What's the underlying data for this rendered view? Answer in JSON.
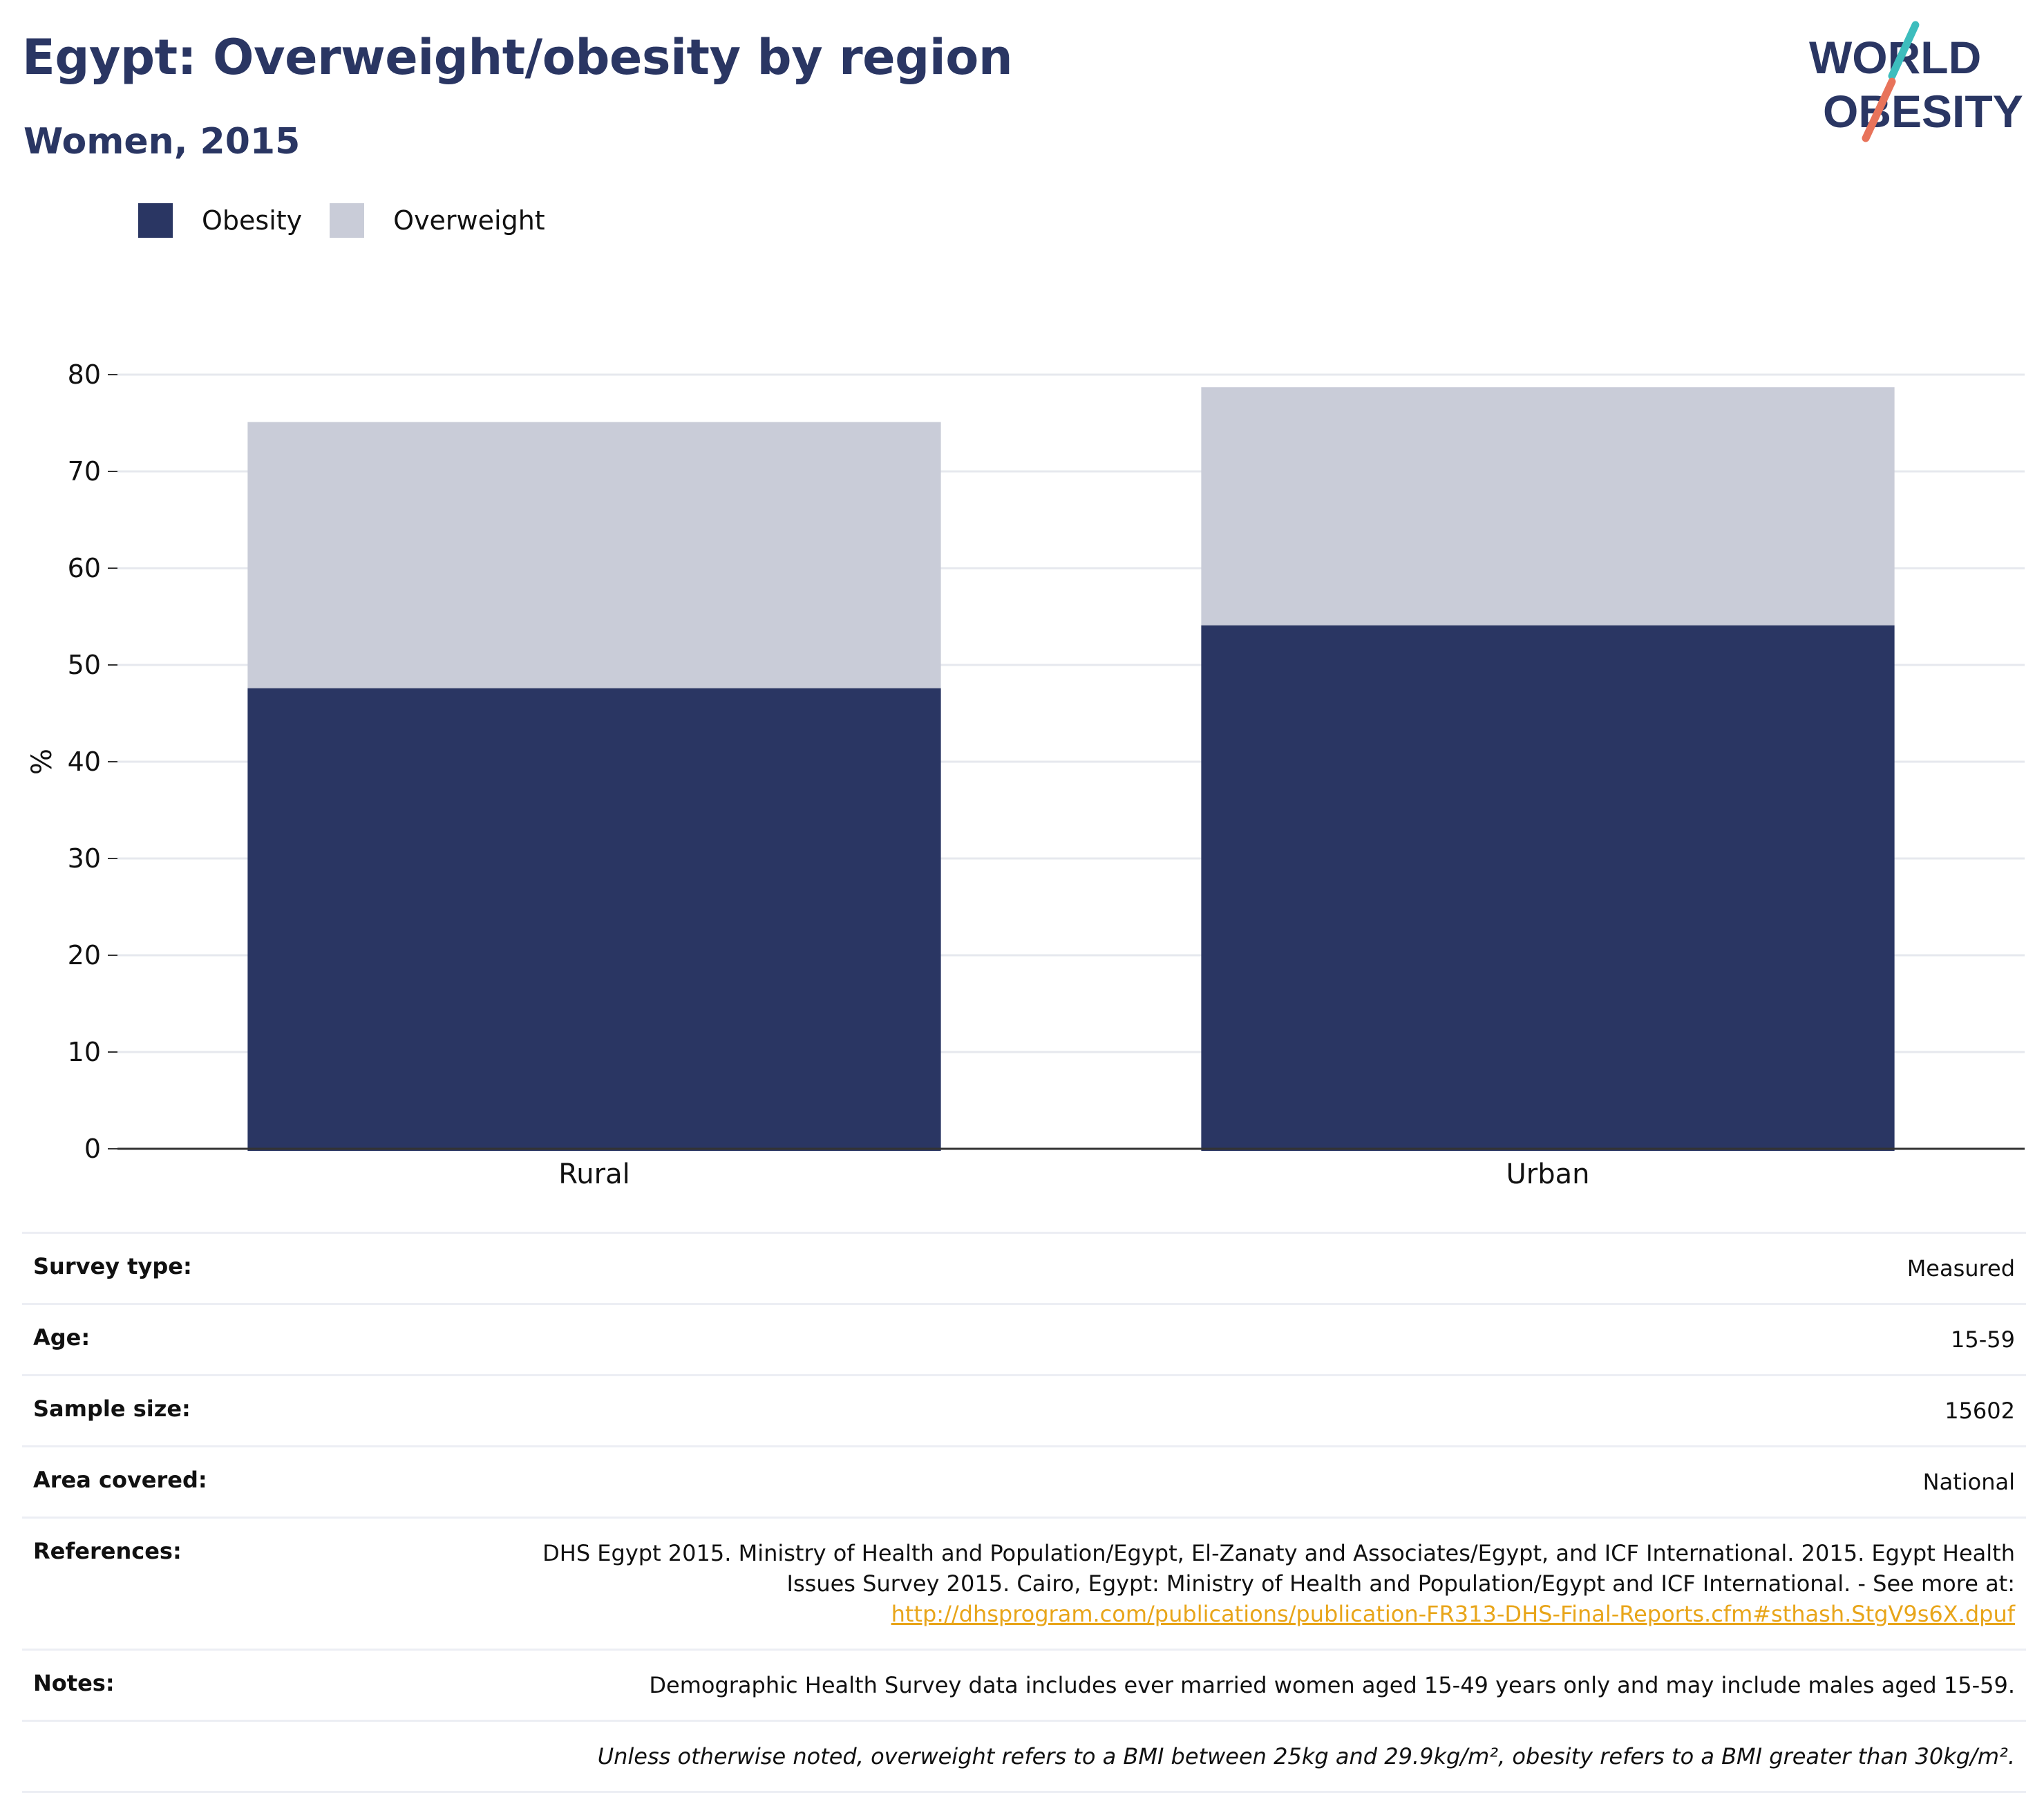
{
  "title": "Egypt: Overweight/obesity by region",
  "subtitle": "Women, 2015",
  "logo": {
    "line1": "WORLD",
    "line2": "OBESITY",
    "accent_teal": "#3dbdbd",
    "accent_coral": "#e8735a"
  },
  "colors": {
    "obesity": "#2a3663",
    "overweight": "#c9ccd8",
    "title": "#2a3663"
  },
  "chart_data": {
    "type": "bar",
    "stacked": true,
    "categories": [
      "Rural",
      "Urban"
    ],
    "series": [
      {
        "name": "Obesity",
        "values": [
          47.6,
          54.1
        ]
      },
      {
        "name": "Overweight",
        "values": [
          27.5,
          24.6
        ]
      }
    ],
    "ylabel": "%",
    "ylim": [
      0,
      80
    ],
    "yticks": [
      0,
      10,
      20,
      30,
      40,
      50,
      60,
      70,
      80
    ],
    "grid": true,
    "legend": "top-left"
  },
  "info": {
    "survey_type": {
      "label": "Survey type:",
      "value": "Measured"
    },
    "age": {
      "label": "Age:",
      "value": "15-59"
    },
    "sample_size": {
      "label": "Sample size:",
      "value": "15602"
    },
    "area": {
      "label": "Area covered:",
      "value": "National"
    },
    "references": {
      "label": "References:",
      "value": "DHS Egypt 2015. Ministry of Health and Population/Egypt, El-Zanaty and Associates/Egypt, and ICF International. 2015. Egypt Health Issues Survey 2015. Cairo, Egypt: Ministry of Health and Population/Egypt and ICF International. - See more at:",
      "link": "http://dhsprogram.com/publications/publication-FR313-DHS-Final-Reports.cfm#sthash.StgV9s6X.dpuf"
    },
    "notes": {
      "label": "Notes:",
      "value": "Demographic Health Survey data includes ever married women aged 15-49 years only and may include males aged 15-59."
    },
    "footnote": "Unless otherwise noted, overweight refers to a BMI between 25kg and 29.9kg/m², obesity refers to a BMI greater than 30kg/m²."
  }
}
